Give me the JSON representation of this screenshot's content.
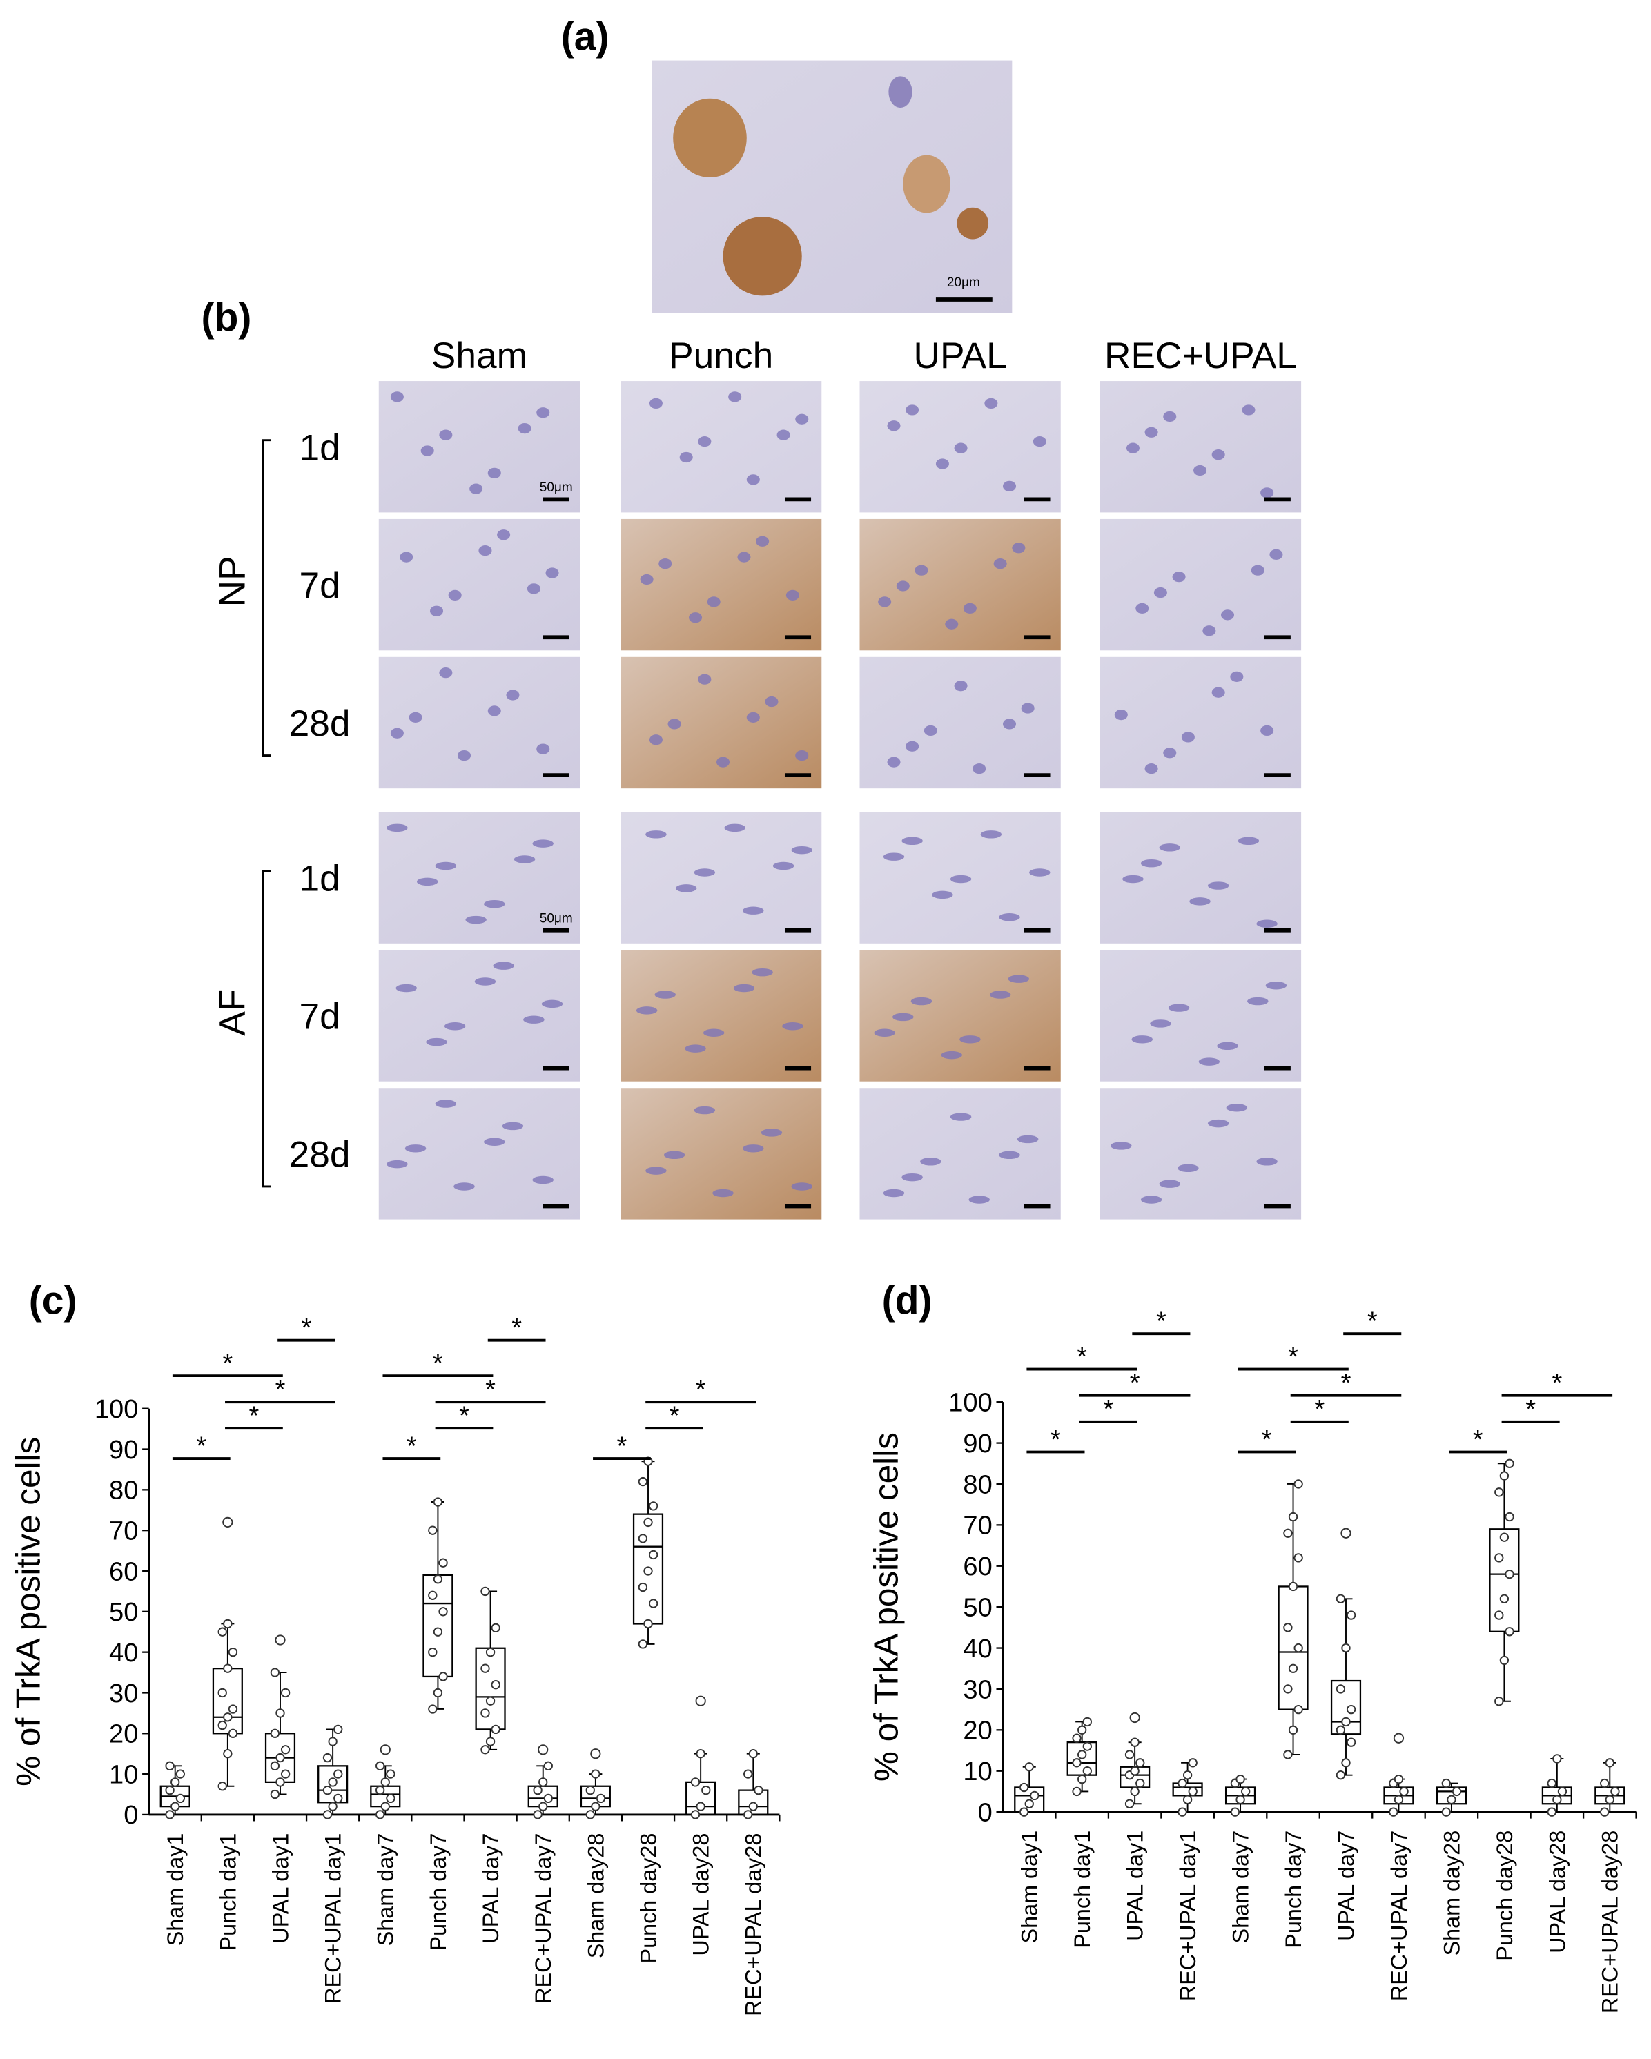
{
  "figure": {
    "panel_a": {
      "label": "(a)",
      "scale_bar": "20μm"
    },
    "panel_b": {
      "label": "(b)",
      "columns": [
        "Sham",
        "Punch",
        "UPAL",
        "REC+UPAL"
      ],
      "groups": [
        {
          "name": "NP",
          "rows": [
            "1d",
            "7d",
            "28d"
          ],
          "scale_bar": "50μm"
        },
        {
          "name": "AF",
          "rows": [
            "1d",
            "7d",
            "28d"
          ],
          "scale_bar": "50μm"
        }
      ]
    }
  },
  "chart_data": [
    {
      "type": "box",
      "panel_label": "(c)",
      "y_label": "% of TrkA positive cells",
      "categories": [
        "Sham day1",
        "Punch day1",
        "UPAL day1",
        "REC+UPAL day1",
        "Sham day7",
        "Punch day7",
        "UPAL day7",
        "REC+UPAL day7",
        "Sham day28",
        "Punch day28",
        "UPAL day28",
        "REC+UPAL day28"
      ],
      "boxes": [
        {
          "whisker_low": 0,
          "q1": 2,
          "median": 4.5,
          "q3": 7,
          "whisker_high": 12,
          "outliers": [],
          "points": [
            0,
            2,
            4,
            6,
            8,
            10,
            12
          ]
        },
        {
          "whisker_low": 7,
          "q1": 20,
          "median": 24,
          "q3": 36,
          "whisker_high": 47,
          "outliers": [
            72
          ],
          "points": [
            7,
            15,
            20,
            22,
            24,
            26,
            30,
            36,
            40,
            45,
            47
          ]
        },
        {
          "whisker_low": 5,
          "q1": 8,
          "median": 14,
          "q3": 20,
          "whisker_high": 35,
          "outliers": [
            43
          ],
          "points": [
            5,
            8,
            10,
            12,
            14,
            16,
            20,
            25,
            30,
            35
          ]
        },
        {
          "whisker_low": 0,
          "q1": 3,
          "median": 6,
          "q3": 12,
          "whisker_high": 21,
          "outliers": [],
          "points": [
            0,
            2,
            4,
            6,
            8,
            10,
            14,
            18,
            21
          ]
        },
        {
          "whisker_low": 0,
          "q1": 2,
          "median": 5,
          "q3": 7,
          "whisker_high": 12,
          "outliers": [
            16
          ],
          "points": [
            0,
            2,
            4,
            6,
            8,
            10,
            12
          ]
        },
        {
          "whisker_low": 26,
          "q1": 34,
          "median": 52,
          "q3": 59,
          "whisker_high": 77,
          "outliers": [],
          "points": [
            26,
            30,
            34,
            40,
            45,
            50,
            54,
            58,
            62,
            70,
            77
          ]
        },
        {
          "whisker_low": 16,
          "q1": 21,
          "median": 29,
          "q3": 41,
          "whisker_high": 55,
          "outliers": [],
          "points": [
            16,
            18,
            21,
            25,
            28,
            32,
            36,
            40,
            46,
            55
          ]
        },
        {
          "whisker_low": 0,
          "q1": 2,
          "median": 4,
          "q3": 7,
          "whisker_high": 12,
          "outliers": [
            16
          ],
          "points": [
            0,
            2,
            4,
            6,
            8,
            12
          ]
        },
        {
          "whisker_low": 0,
          "q1": 2,
          "median": 4,
          "q3": 7,
          "whisker_high": 10,
          "outliers": [
            15
          ],
          "points": [
            0,
            2,
            4,
            6,
            10
          ]
        },
        {
          "whisker_low": 42,
          "q1": 47,
          "median": 66,
          "q3": 74,
          "whisker_high": 87,
          "outliers": [],
          "points": [
            42,
            47,
            52,
            56,
            60,
            64,
            68,
            72,
            76,
            82,
            87
          ]
        },
        {
          "whisker_low": 0,
          "q1": 0,
          "median": 2,
          "q3": 8,
          "whisker_high": 15,
          "outliers": [
            28
          ],
          "points": [
            0,
            2,
            6,
            8,
            15
          ]
        },
        {
          "whisker_low": 0,
          "q1": 0,
          "median": 2,
          "q3": 6,
          "whisker_high": 15,
          "outliers": [],
          "points": [
            0,
            2,
            6,
            10,
            15
          ]
        }
      ],
      "ylim": [
        0,
        100
      ],
      "yticks": [
        0,
        10,
        20,
        30,
        40,
        50,
        60,
        70,
        80,
        90,
        100
      ],
      "significance": [
        {
          "pair": [
            0,
            1
          ],
          "label": "*"
        },
        {
          "pair": [
            1,
            2
          ],
          "label": "*"
        },
        {
          "pair": [
            1,
            3
          ],
          "label": "*"
        },
        {
          "pair": [
            0,
            2
          ],
          "label": "*"
        },
        {
          "pair": [
            2,
            3
          ],
          "label": "*"
        },
        {
          "pair": [
            4,
            5
          ],
          "label": "*"
        },
        {
          "pair": [
            5,
            6
          ],
          "label": "*"
        },
        {
          "pair": [
            5,
            7
          ],
          "label": "*"
        },
        {
          "pair": [
            4,
            6
          ],
          "label": "*"
        },
        {
          "pair": [
            6,
            7
          ],
          "label": "*"
        },
        {
          "pair": [
            8,
            9
          ],
          "label": "*"
        },
        {
          "pair": [
            9,
            10
          ],
          "label": "*"
        },
        {
          "pair": [
            9,
            11
          ],
          "label": "*"
        }
      ]
    },
    {
      "type": "box",
      "panel_label": "(d)",
      "y_label": "% of TrkA positive cells",
      "categories": [
        "Sham day1",
        "Punch day1",
        "UPAL day1",
        "REC+UPAL day1",
        "Sham day7",
        "Punch day7",
        "UPAL day7",
        "REC+UPAL day7",
        "Sham day28",
        "Punch day28",
        "UPAL day28",
        "REC+UPAL day28"
      ],
      "boxes": [
        {
          "whisker_low": 0,
          "q1": 0,
          "median": 4,
          "q3": 6,
          "whisker_high": 11,
          "outliers": [],
          "points": [
            0,
            2,
            4,
            6,
            11
          ]
        },
        {
          "whisker_low": 5,
          "q1": 9,
          "median": 12,
          "q3": 17,
          "whisker_high": 22,
          "outliers": [],
          "points": [
            5,
            8,
            10,
            12,
            14,
            16,
            18,
            20,
            22
          ]
        },
        {
          "whisker_low": 2,
          "q1": 6,
          "median": 9,
          "q3": 11,
          "whisker_high": 17,
          "outliers": [
            23
          ],
          "points": [
            2,
            5,
            7,
            9,
            10,
            12,
            14,
            17
          ]
        },
        {
          "whisker_low": 0,
          "q1": 4,
          "median": 6,
          "q3": 7,
          "whisker_high": 12,
          "outliers": [],
          "points": [
            0,
            3,
            5,
            7,
            9,
            12
          ]
        },
        {
          "whisker_low": 0,
          "q1": 2,
          "median": 4,
          "q3": 6,
          "whisker_high": 8,
          "outliers": [],
          "points": [
            0,
            3,
            5,
            7,
            8
          ]
        },
        {
          "whisker_low": 14,
          "q1": 25,
          "median": 39,
          "q3": 55,
          "whisker_high": 80,
          "outliers": [],
          "points": [
            14,
            20,
            25,
            30,
            35,
            40,
            45,
            55,
            62,
            68,
            72,
            80
          ]
        },
        {
          "whisker_low": 9,
          "q1": 19,
          "median": 22,
          "q3": 32,
          "whisker_high": 52,
          "outliers": [
            68
          ],
          "points": [
            9,
            12,
            17,
            20,
            22,
            25,
            30,
            40,
            48,
            52
          ]
        },
        {
          "whisker_low": 0,
          "q1": 2,
          "median": 4,
          "q3": 6,
          "whisker_high": 8,
          "outliers": [
            18
          ],
          "points": [
            0,
            3,
            5,
            7,
            8
          ]
        },
        {
          "whisker_low": 0,
          "q1": 2,
          "median": 5,
          "q3": 6,
          "whisker_high": 7,
          "outliers": [],
          "points": [
            0,
            3,
            5,
            7
          ]
        },
        {
          "whisker_low": 27,
          "q1": 44,
          "median": 58,
          "q3": 69,
          "whisker_high": 85,
          "outliers": [],
          "points": [
            27,
            37,
            44,
            48,
            52,
            58,
            62,
            67,
            72,
            78,
            82,
            85
          ]
        },
        {
          "whisker_low": 0,
          "q1": 2,
          "median": 4,
          "q3": 6,
          "whisker_high": 13,
          "outliers": [],
          "points": [
            0,
            3,
            5,
            7,
            13
          ]
        },
        {
          "whisker_low": 0,
          "q1": 2,
          "median": 4,
          "q3": 6,
          "whisker_high": 12,
          "outliers": [],
          "points": [
            0,
            3,
            5,
            7,
            12
          ]
        }
      ],
      "ylim": [
        0,
        100
      ],
      "yticks": [
        0,
        10,
        20,
        30,
        40,
        50,
        60,
        70,
        80,
        90,
        100
      ],
      "significance": [
        {
          "pair": [
            0,
            1
          ],
          "label": "*"
        },
        {
          "pair": [
            1,
            2
          ],
          "label": "*"
        },
        {
          "pair": [
            1,
            3
          ],
          "label": "*"
        },
        {
          "pair": [
            0,
            2
          ],
          "label": "*"
        },
        {
          "pair": [
            2,
            3
          ],
          "label": "*"
        },
        {
          "pair": [
            4,
            5
          ],
          "label": "*"
        },
        {
          "pair": [
            5,
            6
          ],
          "label": "*"
        },
        {
          "pair": [
            5,
            7
          ],
          "label": "*"
        },
        {
          "pair": [
            4,
            6
          ],
          "label": "*"
        },
        {
          "pair": [
            6,
            7
          ],
          "label": "*"
        },
        {
          "pair": [
            8,
            9
          ],
          "label": "*"
        },
        {
          "pair": [
            9,
            10
          ],
          "label": "*"
        },
        {
          "pair": [
            9,
            11
          ],
          "label": "*"
        }
      ]
    }
  ]
}
